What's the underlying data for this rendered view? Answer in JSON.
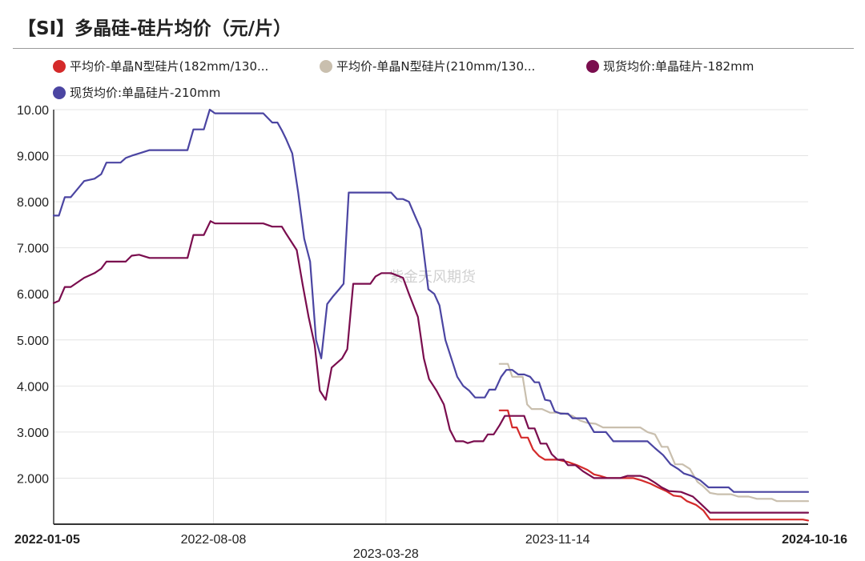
{
  "page": {
    "title": "【SI】多晶硅-硅片均价（元/片）"
  },
  "chart_data": {
    "type": "line",
    "title": "【SI】多晶硅-硅片均价（元/片）",
    "ylim": [
      1.0,
      10.0
    ],
    "y_ticks": [
      "10.00",
      "9.000",
      "8.000",
      "7.000",
      "6.000",
      "5.000",
      "4.000",
      "3.000",
      "2.000"
    ],
    "x_range": [
      "2022-01-05",
      "2024-10-16"
    ],
    "x_ticks": [
      {
        "date": "2022-01-05",
        "label": "2022-01-05",
        "bold": true
      },
      {
        "date": "2022-08-08",
        "label": "2022-08-08",
        "bold": false
      },
      {
        "date": "2023-03-28",
        "label": "2023-03-28",
        "bold": false
      },
      {
        "date": "2023-11-14",
        "label": "2023-11-14",
        "bold": false
      },
      {
        "date": "2024-10-16",
        "label": "2024-10-16",
        "bold": true
      }
    ],
    "grid": true,
    "legend_position": "top",
    "watermark": "紫金天风期货",
    "series": [
      {
        "name": "平均价-单晶N型硅片(182mm/130...",
        "color": "#d42a2a",
        "points": [
          [
            "2023-08-28",
            3.47
          ],
          [
            "2023-09-08",
            3.47
          ],
          [
            "2023-09-14",
            3.1
          ],
          [
            "2023-09-20",
            3.1
          ],
          [
            "2023-09-26",
            2.88
          ],
          [
            "2023-10-05",
            2.88
          ],
          [
            "2023-10-12",
            2.62
          ],
          [
            "2023-10-20",
            2.48
          ],
          [
            "2023-10-28",
            2.4
          ],
          [
            "2023-11-14",
            2.4
          ],
          [
            "2023-11-28",
            2.35
          ],
          [
            "2023-12-10",
            2.28
          ],
          [
            "2023-12-24",
            2.18
          ],
          [
            "2024-01-02",
            2.08
          ],
          [
            "2024-01-10",
            2.05
          ],
          [
            "2024-01-20",
            2.0
          ],
          [
            "2024-02-10",
            2.0
          ],
          [
            "2024-02-24",
            2.0
          ],
          [
            "2024-03-06",
            1.95
          ],
          [
            "2024-03-18",
            1.88
          ],
          [
            "2024-03-28",
            1.8
          ],
          [
            "2024-04-08",
            1.72
          ],
          [
            "2024-04-18",
            1.62
          ],
          [
            "2024-04-28",
            1.6
          ],
          [
            "2024-05-06",
            1.5
          ],
          [
            "2024-05-18",
            1.42
          ],
          [
            "2024-05-28",
            1.3
          ],
          [
            "2024-06-06",
            1.1
          ],
          [
            "2024-07-01",
            1.1
          ],
          [
            "2024-08-01",
            1.1
          ],
          [
            "2024-09-01",
            1.1
          ],
          [
            "2024-10-09",
            1.1
          ],
          [
            "2024-10-16",
            1.08
          ]
        ]
      },
      {
        "name": "平均价-单晶N型硅片(210mm/130...",
        "color": "#c9bfae",
        "points": [
          [
            "2023-08-28",
            4.48
          ],
          [
            "2023-09-08",
            4.48
          ],
          [
            "2023-09-14",
            4.2
          ],
          [
            "2023-09-28",
            4.2
          ],
          [
            "2023-10-04",
            3.6
          ],
          [
            "2023-10-10",
            3.5
          ],
          [
            "2023-10-24",
            3.5
          ],
          [
            "2023-11-04",
            3.42
          ],
          [
            "2023-11-14",
            3.42
          ],
          [
            "2023-11-24",
            3.4
          ],
          [
            "2023-12-04",
            3.35
          ],
          [
            "2023-12-14",
            3.25
          ],
          [
            "2023-12-24",
            3.2
          ],
          [
            "2024-01-04",
            3.18
          ],
          [
            "2024-01-14",
            3.1
          ],
          [
            "2024-02-10",
            3.1
          ],
          [
            "2024-03-04",
            3.1
          ],
          [
            "2024-03-14",
            3.0
          ],
          [
            "2024-03-24",
            2.95
          ],
          [
            "2024-04-02",
            2.68
          ],
          [
            "2024-04-10",
            2.68
          ],
          [
            "2024-04-20",
            2.3
          ],
          [
            "2024-04-30",
            2.3
          ],
          [
            "2024-05-10",
            2.2
          ],
          [
            "2024-05-20",
            1.92
          ],
          [
            "2024-05-28",
            1.82
          ],
          [
            "2024-06-06",
            1.68
          ],
          [
            "2024-06-16",
            1.65
          ],
          [
            "2024-07-04",
            1.65
          ],
          [
            "2024-07-14",
            1.6
          ],
          [
            "2024-07-28",
            1.6
          ],
          [
            "2024-08-08",
            1.55
          ],
          [
            "2024-08-28",
            1.55
          ],
          [
            "2024-09-04",
            1.5
          ],
          [
            "2024-10-16",
            1.5
          ]
        ]
      },
      {
        "name": "现货均价:单晶硅片-182mm",
        "color": "#7a0d4e",
        "points": [
          [
            "2022-01-05",
            5.8
          ],
          [
            "2022-01-12",
            5.85
          ],
          [
            "2022-01-20",
            6.15
          ],
          [
            "2022-01-28",
            6.15
          ],
          [
            "2022-02-15",
            6.35
          ],
          [
            "2022-03-01",
            6.45
          ],
          [
            "2022-03-10",
            6.55
          ],
          [
            "2022-03-17",
            6.7
          ],
          [
            "2022-04-12",
            6.7
          ],
          [
            "2022-04-20",
            6.83
          ],
          [
            "2022-04-30",
            6.85
          ],
          [
            "2022-05-14",
            6.78
          ],
          [
            "2022-07-04",
            6.78
          ],
          [
            "2022-07-12",
            7.28
          ],
          [
            "2022-07-26",
            7.28
          ],
          [
            "2022-08-04",
            7.58
          ],
          [
            "2022-08-10",
            7.53
          ],
          [
            "2022-10-14",
            7.53
          ],
          [
            "2022-10-26",
            7.46
          ],
          [
            "2022-11-08",
            7.46
          ],
          [
            "2022-11-14",
            7.3
          ],
          [
            "2022-11-28",
            6.95
          ],
          [
            "2022-12-06",
            6.2
          ],
          [
            "2022-12-14",
            5.5
          ],
          [
            "2022-12-22",
            4.9
          ],
          [
            "2022-12-29",
            3.9
          ],
          [
            "2023-01-06",
            3.7
          ],
          [
            "2023-01-14",
            4.4
          ],
          [
            "2023-01-28",
            4.6
          ],
          [
            "2023-02-04",
            4.8
          ],
          [
            "2023-02-12",
            6.22
          ],
          [
            "2023-03-01",
            6.22
          ],
          [
            "2023-03-07",
            6.22
          ],
          [
            "2023-03-14",
            6.38
          ],
          [
            "2023-03-22",
            6.45
          ],
          [
            "2023-04-04",
            6.45
          ],
          [
            "2023-04-12",
            6.4
          ],
          [
            "2023-04-20",
            6.35
          ],
          [
            "2023-04-28",
            6.0
          ],
          [
            "2023-05-10",
            5.5
          ],
          [
            "2023-05-18",
            4.6
          ],
          [
            "2023-05-25",
            4.15
          ],
          [
            "2023-06-04",
            3.9
          ],
          [
            "2023-06-14",
            3.6
          ],
          [
            "2023-06-22",
            3.05
          ],
          [
            "2023-06-30",
            2.8
          ],
          [
            "2023-07-10",
            2.8
          ],
          [
            "2023-07-16",
            2.76
          ],
          [
            "2023-07-24",
            2.8
          ],
          [
            "2023-08-01",
            2.8
          ],
          [
            "2023-08-06",
            2.8
          ],
          [
            "2023-08-12",
            2.95
          ],
          [
            "2023-08-20",
            2.95
          ],
          [
            "2023-08-28",
            3.15
          ],
          [
            "2023-09-04",
            3.35
          ],
          [
            "2023-09-30",
            3.35
          ],
          [
            "2023-10-06",
            3.08
          ],
          [
            "2023-10-14",
            3.08
          ],
          [
            "2023-10-22",
            2.75
          ],
          [
            "2023-10-30",
            2.75
          ],
          [
            "2023-11-06",
            2.52
          ],
          [
            "2023-11-14",
            2.4
          ],
          [
            "2023-11-22",
            2.4
          ],
          [
            "2023-11-28",
            2.28
          ],
          [
            "2023-12-08",
            2.28
          ],
          [
            "2023-12-18",
            2.15
          ],
          [
            "2024-01-02",
            2.0
          ],
          [
            "2024-01-20",
            2.0
          ],
          [
            "2024-02-06",
            2.0
          ],
          [
            "2024-02-16",
            2.05
          ],
          [
            "2024-03-04",
            2.05
          ],
          [
            "2024-03-14",
            2.0
          ],
          [
            "2024-03-24",
            1.9
          ],
          [
            "2024-04-02",
            1.8
          ],
          [
            "2024-04-12",
            1.72
          ],
          [
            "2024-04-28",
            1.7
          ],
          [
            "2024-05-14",
            1.6
          ],
          [
            "2024-05-24",
            1.45
          ],
          [
            "2024-06-06",
            1.25
          ],
          [
            "2024-07-01",
            1.25
          ],
          [
            "2024-08-01",
            1.25
          ],
          [
            "2024-09-01",
            1.25
          ],
          [
            "2024-10-16",
            1.25
          ]
        ]
      },
      {
        "name": "现货均价:单晶硅片-210mm",
        "color": "#4b45a2",
        "points": [
          [
            "2022-01-05",
            7.7
          ],
          [
            "2022-01-12",
            7.7
          ],
          [
            "2022-01-20",
            8.1
          ],
          [
            "2022-01-28",
            8.1
          ],
          [
            "2022-02-15",
            8.45
          ],
          [
            "2022-03-01",
            8.5
          ],
          [
            "2022-03-10",
            8.6
          ],
          [
            "2022-03-17",
            8.85
          ],
          [
            "2022-04-05",
            8.85
          ],
          [
            "2022-04-12",
            8.95
          ],
          [
            "2022-04-20",
            9.0
          ],
          [
            "2022-04-30",
            9.05
          ],
          [
            "2022-05-14",
            9.12
          ],
          [
            "2022-07-04",
            9.12
          ],
          [
            "2022-07-12",
            9.57
          ],
          [
            "2022-07-26",
            9.57
          ],
          [
            "2022-08-03",
            10.0
          ],
          [
            "2022-08-10",
            9.92
          ],
          [
            "2022-10-14",
            9.92
          ],
          [
            "2022-10-26",
            9.72
          ],
          [
            "2022-11-02",
            9.72
          ],
          [
            "2022-11-08",
            9.55
          ],
          [
            "2022-11-14",
            9.35
          ],
          [
            "2022-11-22",
            9.05
          ],
          [
            "2022-11-30",
            8.2
          ],
          [
            "2022-12-08",
            7.2
          ],
          [
            "2022-12-16",
            6.7
          ],
          [
            "2022-12-24",
            5.0
          ],
          [
            "2022-12-31",
            4.6
          ],
          [
            "2023-01-08",
            5.78
          ],
          [
            "2023-01-16",
            5.95
          ],
          [
            "2023-01-24",
            6.1
          ],
          [
            "2023-01-30",
            6.22
          ],
          [
            "2023-02-06",
            8.2
          ],
          [
            "2023-03-01",
            8.2
          ],
          [
            "2023-04-04",
            8.2
          ],
          [
            "2023-04-12",
            8.06
          ],
          [
            "2023-04-20",
            8.06
          ],
          [
            "2023-04-28",
            8.0
          ],
          [
            "2023-05-06",
            7.7
          ],
          [
            "2023-05-14",
            7.4
          ],
          [
            "2023-05-24",
            6.1
          ],
          [
            "2023-06-01",
            6.0
          ],
          [
            "2023-06-08",
            5.75
          ],
          [
            "2023-06-16",
            5.0
          ],
          [
            "2023-06-24",
            4.6
          ],
          [
            "2023-07-02",
            4.2
          ],
          [
            "2023-07-10",
            4.0
          ],
          [
            "2023-07-18",
            3.9
          ],
          [
            "2023-07-26",
            3.75
          ],
          [
            "2023-08-01",
            3.75
          ],
          [
            "2023-08-08",
            3.75
          ],
          [
            "2023-08-14",
            3.92
          ],
          [
            "2023-08-22",
            3.92
          ],
          [
            "2023-08-30",
            4.2
          ],
          [
            "2023-09-06",
            4.35
          ],
          [
            "2023-09-14",
            4.35
          ],
          [
            "2023-09-22",
            4.25
          ],
          [
            "2023-09-30",
            4.25
          ],
          [
            "2023-10-08",
            4.2
          ],
          [
            "2023-10-14",
            4.08
          ],
          [
            "2023-10-20",
            4.08
          ],
          [
            "2023-10-28",
            3.7
          ],
          [
            "2023-11-04",
            3.68
          ],
          [
            "2023-11-10",
            3.45
          ],
          [
            "2023-11-18",
            3.4
          ],
          [
            "2023-11-28",
            3.4
          ],
          [
            "2023-12-04",
            3.3
          ],
          [
            "2023-12-22",
            3.3
          ],
          [
            "2024-01-02",
            3.0
          ],
          [
            "2024-01-18",
            3.0
          ],
          [
            "2024-01-28",
            2.8
          ],
          [
            "2024-03-14",
            2.8
          ],
          [
            "2024-03-24",
            2.65
          ],
          [
            "2024-04-04",
            2.5
          ],
          [
            "2024-04-14",
            2.3
          ],
          [
            "2024-04-24",
            2.2
          ],
          [
            "2024-05-02",
            2.1
          ],
          [
            "2024-05-12",
            2.05
          ],
          [
            "2024-05-24",
            1.95
          ],
          [
            "2024-06-04",
            1.8
          ],
          [
            "2024-07-01",
            1.8
          ],
          [
            "2024-07-08",
            1.7
          ],
          [
            "2024-08-01",
            1.7
          ],
          [
            "2024-09-01",
            1.7
          ],
          [
            "2024-10-16",
            1.7
          ]
        ]
      }
    ]
  }
}
